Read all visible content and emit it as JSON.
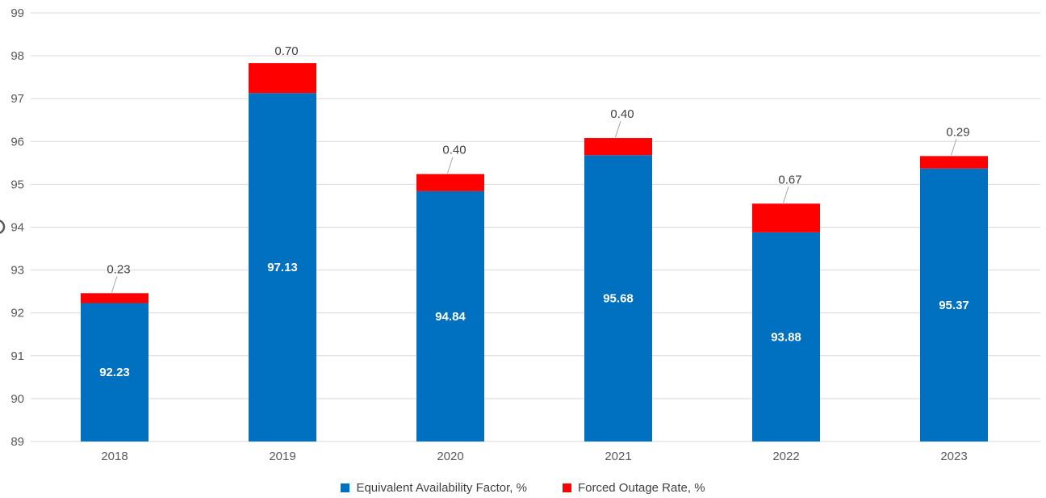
{
  "chart_data": {
    "type": "bar",
    "stacked": true,
    "title": "",
    "xlabel": "",
    "ylabel": "",
    "categories": [
      "2018",
      "2019",
      "2020",
      "2021",
      "2022",
      "2023"
    ],
    "series": [
      {
        "name": "Equivalent Availability Factor, %",
        "color": "#0070C0",
        "values": [
          92.23,
          97.13,
          94.84,
          95.68,
          93.88,
          95.37
        ],
        "data_labels": [
          "92.23",
          "97.13",
          "94.84",
          "95.68",
          "93.88",
          "95.37"
        ],
        "data_label_color": "#FFFFFF",
        "data_label_position": "inside-center"
      },
      {
        "name": "Forced Outage Rate, %",
        "color": "#FF0000",
        "values": [
          0.23,
          0.7,
          0.4,
          0.4,
          0.67,
          0.29
        ],
        "data_labels": [
          "0.23",
          "0.70",
          "0.40",
          "0.40",
          "0.67",
          "0.29"
        ],
        "data_label_color": "#404040",
        "data_label_position": "outside-above",
        "callout_leader_lines": [
          true,
          false,
          true,
          true,
          true,
          true
        ]
      }
    ],
    "ylim": [
      89,
      99
    ],
    "ytick_step": 1,
    "yticks": [
      "89",
      "90",
      "91",
      "92",
      "93",
      "94",
      "95",
      "96",
      "97",
      "98",
      "99"
    ],
    "grid": true,
    "gridline_color": "#D9D9D9",
    "axis_text_color": "#595959",
    "leader_line_color": "#A6A6A6",
    "legend_position": "bottom-center"
  },
  "decorations": {
    "clipped_glyph_note": "partial circle glyph clipped at left edge beside the 94 tick"
  }
}
